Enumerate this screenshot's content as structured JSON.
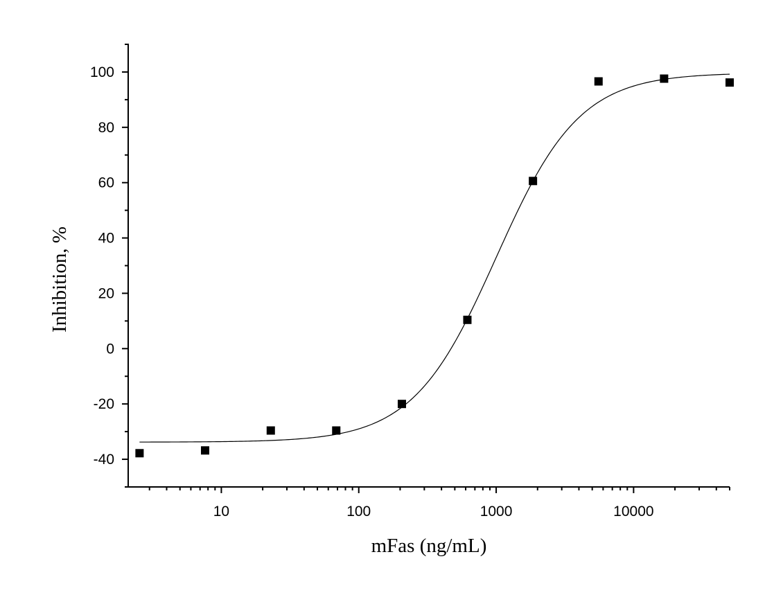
{
  "chart_data": {
    "type": "scatter",
    "title": "",
    "xlabel": "mFas (ng/mL)",
    "ylabel": "Inhibition, %",
    "x_scale": "log",
    "xlim": [
      2.1,
      50000
    ],
    "ylim": [
      -50,
      110
    ],
    "x_ticks": [
      10,
      100,
      1000,
      10000
    ],
    "x_tick_labels": [
      "10",
      "100",
      "1000",
      "10000"
    ],
    "y_ticks": [
      -40,
      -20,
      0,
      20,
      40,
      60,
      80,
      100
    ],
    "y_tick_labels": [
      "-40",
      "-20",
      "0",
      "20",
      "40",
      "60",
      "80",
      "100"
    ],
    "grid": false,
    "marker": "square",
    "color": "#000000",
    "series": [
      {
        "x": [
          2.54,
          7.62,
          22.9,
          68.6,
          206,
          617,
          1852,
          5556,
          16667,
          50000
        ],
        "y": [
          -37.8,
          -36.8,
          -29.6,
          -29.6,
          -20,
          10.4,
          60.6,
          96.6,
          97.6,
          96.2
        ]
      }
    ],
    "fit_curve": {
      "type": "sigmoidal",
      "bottom": -33.8,
      "top": 99.7,
      "ec50": 1000,
      "hill": 1.43
    }
  }
}
